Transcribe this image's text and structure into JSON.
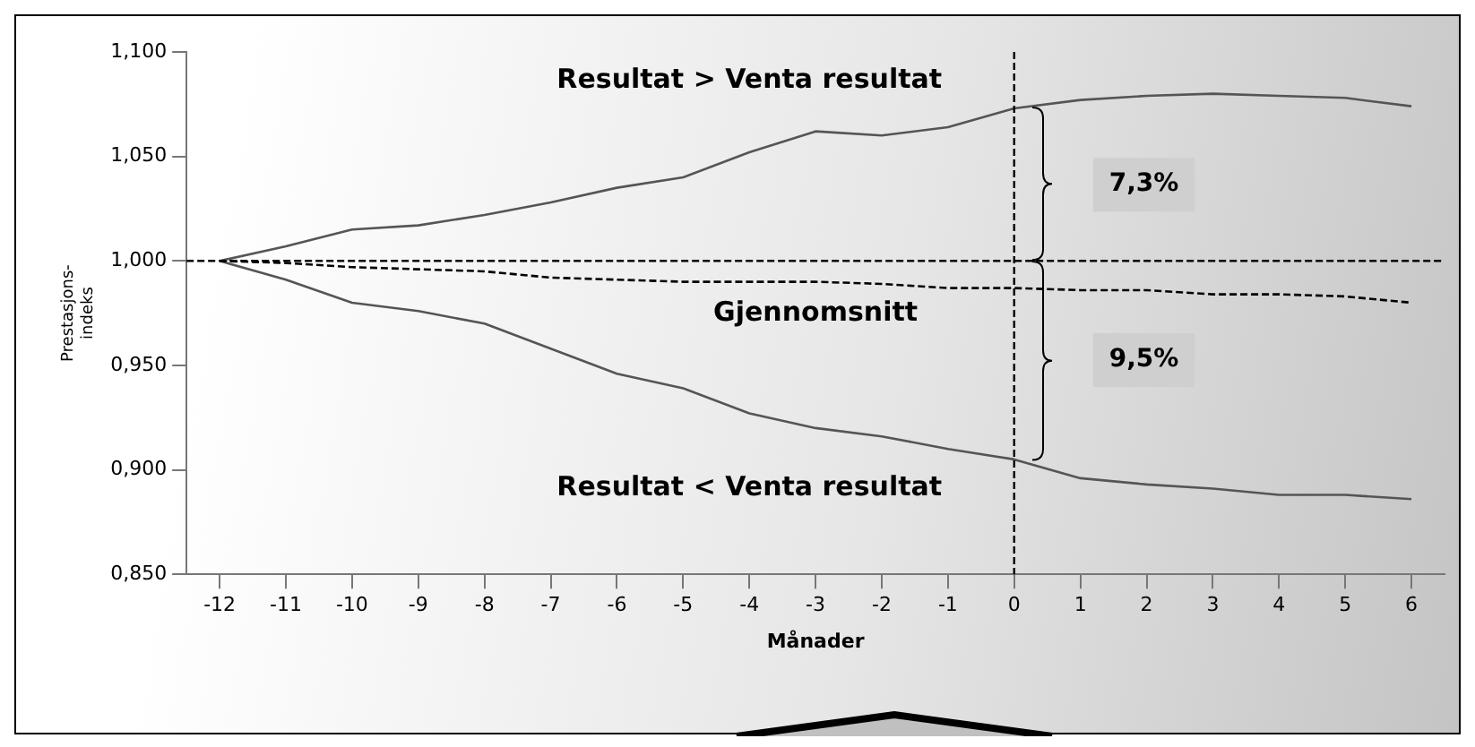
{
  "chart_data": {
    "type": "line",
    "xlabel": "Månader",
    "ylabel": "Prestasjons-indeks",
    "x": [
      -12,
      -11,
      -10,
      -9,
      -8,
      -7,
      -6,
      -5,
      -4,
      -3,
      -2,
      -1,
      0,
      1,
      2,
      3,
      4,
      5,
      6
    ],
    "series": [
      {
        "name": "Resultat > Venta resultat",
        "color": "#555555",
        "line_style": "solid",
        "values": [
          1.0,
          1.007,
          1.015,
          1.017,
          1.022,
          1.028,
          1.035,
          1.04,
          1.052,
          1.062,
          1.06,
          1.064,
          1.073,
          1.077,
          1.079,
          1.08,
          1.079,
          1.078,
          1.074
        ]
      },
      {
        "name": "Gjennomsnitt",
        "color": "#000000",
        "line_style": "dashed",
        "values": [
          1.0,
          0.999,
          0.997,
          0.996,
          0.995,
          0.992,
          0.991,
          0.99,
          0.99,
          0.99,
          0.989,
          0.987,
          0.987,
          0.986,
          0.986,
          0.984,
          0.984,
          0.983,
          0.98
        ]
      },
      {
        "name": "Resultat < Venta resultat",
        "color": "#555555",
        "line_style": "solid",
        "values": [
          1.0,
          0.991,
          0.98,
          0.976,
          0.97,
          0.958,
          0.946,
          0.939,
          0.927,
          0.92,
          0.916,
          0.91,
          0.905,
          0.896,
          0.893,
          0.891,
          0.888,
          0.888,
          0.886
        ]
      }
    ],
    "xlim": [
      -12.5,
      6.5
    ],
    "xticks": [
      -12,
      -11,
      -10,
      -9,
      -8,
      -7,
      -6,
      -5,
      -4,
      -3,
      -2,
      -1,
      0,
      1,
      2,
      3,
      4,
      5,
      6
    ],
    "ylim": [
      0.85,
      1.1
    ],
    "yticks": [
      {
        "value": 0.85,
        "label": "0,850"
      },
      {
        "value": 0.9,
        "label": "0,900"
      },
      {
        "value": 0.95,
        "label": "0,950"
      },
      {
        "value": 1.0,
        "label": "1,000"
      },
      {
        "value": 1.05,
        "label": "1,050"
      },
      {
        "value": 1.1,
        "label": "1,100"
      }
    ],
    "ref_lines": [
      {
        "axis": "y",
        "value": 1.0,
        "line_style": "dashed"
      },
      {
        "axis": "x",
        "value": 0,
        "line_style": "dashed"
      }
    ],
    "annotations": [
      "7,3%",
      "9,5%"
    ],
    "grid": false,
    "legend": false,
    "marker": "none"
  }
}
